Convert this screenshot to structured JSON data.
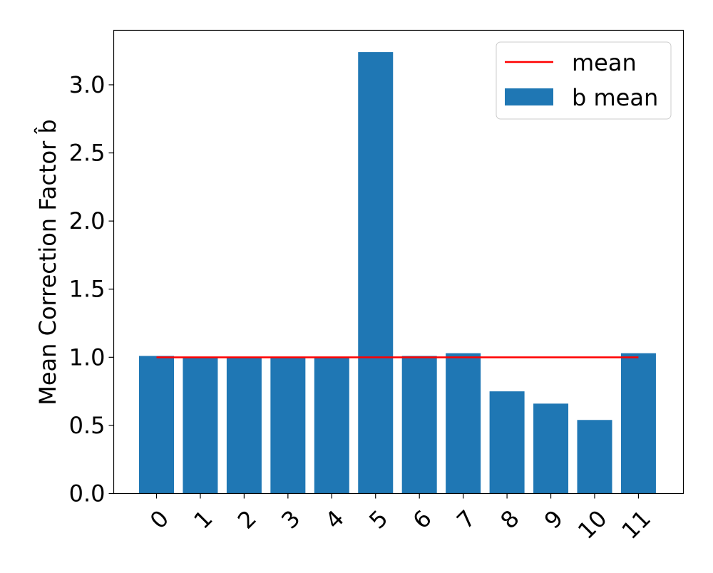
{
  "chart_data": {
    "type": "bar",
    "categories": [
      "0",
      "1",
      "2",
      "3",
      "4",
      "5",
      "6",
      "7",
      "8",
      "9",
      "10",
      "11"
    ],
    "values": [
      1.01,
      1.0,
      1.0,
      1.0,
      1.0,
      3.24,
      1.01,
      1.03,
      0.75,
      0.66,
      0.54,
      1.03
    ],
    "reference_line": {
      "name": "mean",
      "value": 1.0,
      "color": "#ff0000"
    },
    "series": [
      {
        "name": "b mean",
        "color": "#1f77b4"
      }
    ],
    "ylabel": "Mean Correction Factor b̂",
    "xlabel": "",
    "ylim": [
      0,
      3.4
    ],
    "yticks": [
      "0.0",
      "0.5",
      "1.0",
      "1.5",
      "2.0",
      "2.5",
      "3.0"
    ],
    "legend": {
      "position": "top-right",
      "entries": [
        "mean",
        "b mean"
      ]
    },
    "grid": false
  }
}
